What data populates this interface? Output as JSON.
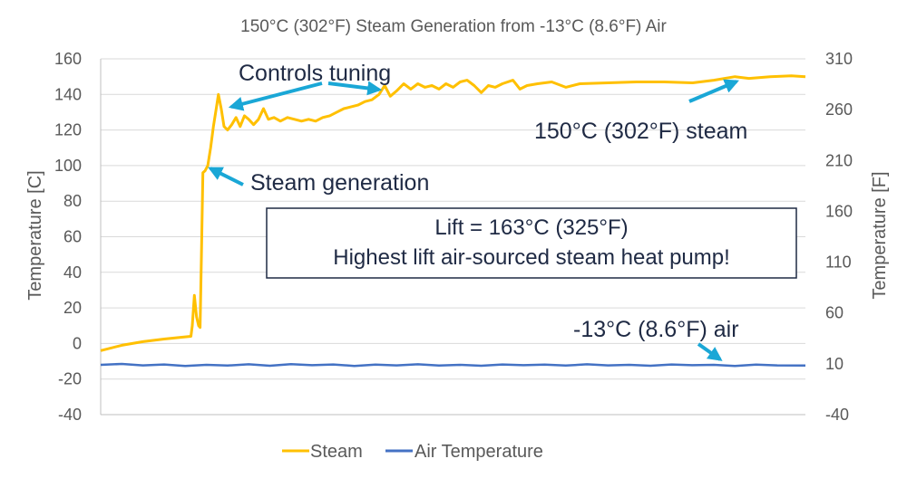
{
  "chart_data": {
    "type": "line",
    "title": "150°C (302°F) Steam Generation from -13°C (8.6°F) Air",
    "ylabel": "Temperature [C]",
    "y2label": "Temperature [F]",
    "xlabel": "",
    "ylim": [
      -40,
      160
    ],
    "y2lim": [
      -40,
      310
    ],
    "yticks": [
      "160",
      "140",
      "120",
      "100",
      "80",
      "60",
      "40",
      "20",
      "0",
      "-20",
      "-40"
    ],
    "y2ticks": [
      "310",
      "260",
      "210",
      "160",
      "110",
      "60",
      "10",
      "-40"
    ],
    "xlim": [
      0,
      1
    ],
    "grid": "horizontal",
    "legend_position": "bottom",
    "series": [
      {
        "name": "Steam",
        "color": "#FFC000",
        "points": [
          [
            0.0,
            -4
          ],
          [
            0.03,
            -1
          ],
          [
            0.06,
            1
          ],
          [
            0.09,
            2.5
          ],
          [
            0.115,
            3.5
          ],
          [
            0.128,
            4
          ],
          [
            0.13,
            10
          ],
          [
            0.133,
            27
          ],
          [
            0.136,
            15
          ],
          [
            0.139,
            10
          ],
          [
            0.141,
            9
          ],
          [
            0.143,
            50
          ],
          [
            0.145,
            96
          ],
          [
            0.148,
            97
          ],
          [
            0.152,
            100
          ],
          [
            0.156,
            110
          ],
          [
            0.16,
            122
          ],
          [
            0.164,
            132
          ],
          [
            0.167,
            140
          ],
          [
            0.171,
            132
          ],
          [
            0.175,
            122
          ],
          [
            0.18,
            120
          ],
          [
            0.186,
            123
          ],
          [
            0.192,
            127
          ],
          [
            0.198,
            122
          ],
          [
            0.204,
            128
          ],
          [
            0.21,
            126
          ],
          [
            0.217,
            123
          ],
          [
            0.224,
            126
          ],
          [
            0.231,
            132
          ],
          [
            0.238,
            126
          ],
          [
            0.246,
            127
          ],
          [
            0.255,
            125
          ],
          [
            0.265,
            127
          ],
          [
            0.275,
            126
          ],
          [
            0.285,
            125
          ],
          [
            0.295,
            126
          ],
          [
            0.305,
            125
          ],
          [
            0.315,
            127
          ],
          [
            0.325,
            128
          ],
          [
            0.335,
            130
          ],
          [
            0.345,
            132
          ],
          [
            0.355,
            133
          ],
          [
            0.365,
            134
          ],
          [
            0.375,
            136
          ],
          [
            0.385,
            137
          ],
          [
            0.395,
            140
          ],
          [
            0.403,
            145
          ],
          [
            0.411,
            139
          ],
          [
            0.42,
            142
          ],
          [
            0.43,
            146
          ],
          [
            0.44,
            143
          ],
          [
            0.45,
            146
          ],
          [
            0.46,
            144
          ],
          [
            0.47,
            145
          ],
          [
            0.48,
            143
          ],
          [
            0.49,
            146
          ],
          [
            0.5,
            144
          ],
          [
            0.51,
            147
          ],
          [
            0.52,
            148
          ],
          [
            0.53,
            145
          ],
          [
            0.54,
            141
          ],
          [
            0.55,
            145
          ],
          [
            0.56,
            144
          ],
          [
            0.57,
            146
          ],
          [
            0.585,
            148
          ],
          [
            0.595,
            143
          ],
          [
            0.605,
            145
          ],
          [
            0.62,
            146
          ],
          [
            0.64,
            147
          ],
          [
            0.66,
            144
          ],
          [
            0.68,
            146
          ],
          [
            0.72,
            146.5
          ],
          [
            0.76,
            147
          ],
          [
            0.8,
            147
          ],
          [
            0.84,
            146.5
          ],
          [
            0.87,
            148
          ],
          [
            0.9,
            150
          ],
          [
            0.92,
            149
          ],
          [
            0.95,
            150
          ],
          [
            0.98,
            150.5
          ],
          [
            1.0,
            150
          ]
        ]
      },
      {
        "name": "Air Temperature",
        "color": "#4472C4",
        "points": [
          [
            0.0,
            -12
          ],
          [
            0.03,
            -11.5
          ],
          [
            0.06,
            -12.3
          ],
          [
            0.09,
            -11.8
          ],
          [
            0.12,
            -12.6
          ],
          [
            0.15,
            -12
          ],
          [
            0.18,
            -12.4
          ],
          [
            0.21,
            -11.7
          ],
          [
            0.24,
            -12.5
          ],
          [
            0.27,
            -11.6
          ],
          [
            0.3,
            -12.2
          ],
          [
            0.33,
            -11.8
          ],
          [
            0.36,
            -12.6
          ],
          [
            0.39,
            -11.9
          ],
          [
            0.42,
            -12.3
          ],
          [
            0.45,
            -11.7
          ],
          [
            0.48,
            -12.4
          ],
          [
            0.51,
            -12
          ],
          [
            0.54,
            -12.5
          ],
          [
            0.57,
            -11.8
          ],
          [
            0.6,
            -12.2
          ],
          [
            0.63,
            -11.9
          ],
          [
            0.66,
            -12.4
          ],
          [
            0.69,
            -11.7
          ],
          [
            0.72,
            -12.3
          ],
          [
            0.75,
            -12
          ],
          [
            0.78,
            -12.5
          ],
          [
            0.81,
            -11.8
          ],
          [
            0.84,
            -12.2
          ],
          [
            0.87,
            -12
          ],
          [
            0.9,
            -12.6
          ],
          [
            0.93,
            -11.9
          ],
          [
            0.96,
            -12.3
          ],
          [
            1.0,
            -12.4
          ]
        ]
      }
    ],
    "annotations": {
      "controls": "Controls tuning",
      "steam_gen": "Steam generation",
      "steam150": "150°C (302°F) steam",
      "air": "-13°C (8.6°F) air",
      "box_line1": "Lift = 163°C (325°F)",
      "box_line2": "Highest lift air-sourced steam heat pump!"
    },
    "arrow_color": "#1AA7D6"
  }
}
